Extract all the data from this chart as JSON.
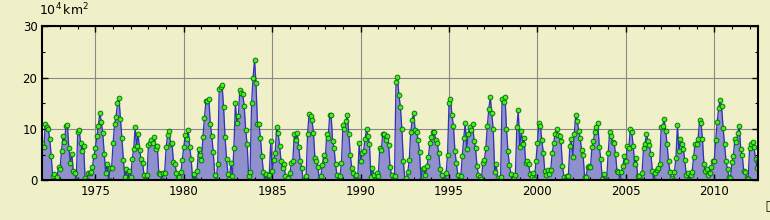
{
  "start_year": 1972,
  "end_year": 2013,
  "ylim": [
    0,
    30
  ],
  "yticks": [
    0,
    10,
    20,
    30
  ],
  "xticks": [
    1975,
    1980,
    1985,
    1990,
    1995,
    2000,
    2005,
    2010
  ],
  "xlabel_extra": "年",
  "bg_color": "#f0f0c8",
  "fig_color": "#f0f0c8",
  "fill_color": "#9090cc",
  "line_color": "#3030bb",
  "dot_color": "#44ee22",
  "dot_edge_color": "#006600",
  "figsize": [
    7.7,
    2.2
  ],
  "dpi": 100
}
